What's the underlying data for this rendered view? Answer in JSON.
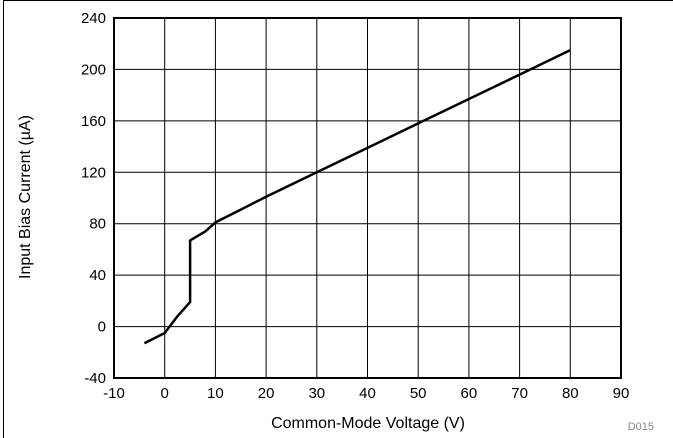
{
  "chart_data": {
    "type": "line",
    "xlabel": "Common-Mode Voltage (V)",
    "ylabel": "Input Bias Current (µA)",
    "xlim": [
      -10,
      90
    ],
    "ylim": [
      -40,
      240
    ],
    "xticks": [
      -10,
      0,
      10,
      20,
      30,
      40,
      50,
      60,
      70,
      80,
      90
    ],
    "yticks": [
      -40,
      0,
      40,
      80,
      120,
      160,
      200,
      240
    ],
    "grid": true,
    "series": [
      {
        "x": [
          -4,
          0,
          2.5,
          5,
          5,
          8,
          10,
          15,
          20,
          30,
          40,
          50,
          60,
          70,
          80
        ],
        "y": [
          -13,
          -5,
          8,
          19,
          67,
          74,
          81,
          91,
          101,
          120,
          139,
          158,
          177,
          196,
          215
        ]
      }
    ],
    "figure_code": "D015"
  }
}
